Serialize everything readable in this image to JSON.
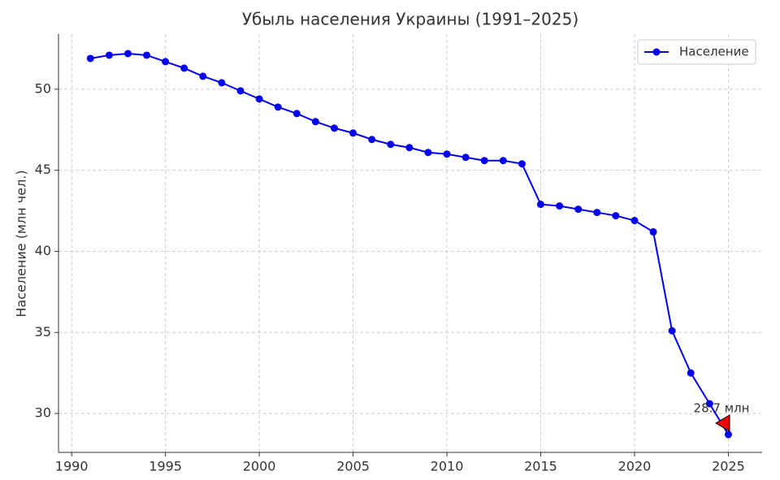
{
  "chart_data": {
    "type": "line",
    "title": "Убыль населения Украины (1991–2025)",
    "y_label": "Население (млн чел.)",
    "x": [
      1991,
      1992,
      1993,
      1994,
      1995,
      1996,
      1997,
      1998,
      1999,
      2000,
      2001,
      2002,
      2003,
      2004,
      2005,
      2006,
      2007,
      2008,
      2009,
      2010,
      2011,
      2012,
      2013,
      2014,
      2015,
      2016,
      2017,
      2018,
      2019,
      2020,
      2021,
      2022,
      2023,
      2024,
      2025
    ],
    "series": [
      {
        "name": "Население",
        "color": "#0000ee",
        "values": [
          51.9,
          52.1,
          52.2,
          52.1,
          51.7,
          51.3,
          50.8,
          50.4,
          49.9,
          49.4,
          48.9,
          48.5,
          48.0,
          47.6,
          47.3,
          46.9,
          46.6,
          46.4,
          46.1,
          46.0,
          45.8,
          45.6,
          45.6,
          45.4,
          42.9,
          42.8,
          42.6,
          42.4,
          42.2,
          41.9,
          41.2,
          35.1,
          32.5,
          30.6,
          28.7
        ]
      }
    ],
    "xlim": [
      1989.3,
      2026.8
    ],
    "ylim": [
      27.6,
      53.4
    ],
    "xticks": [
      1990,
      1995,
      2000,
      2005,
      2010,
      2015,
      2020,
      2025
    ],
    "yticks": [
      30,
      35,
      40,
      45,
      50
    ],
    "grid": true,
    "legend": "upper right",
    "annotation": "28.7 млн"
  }
}
